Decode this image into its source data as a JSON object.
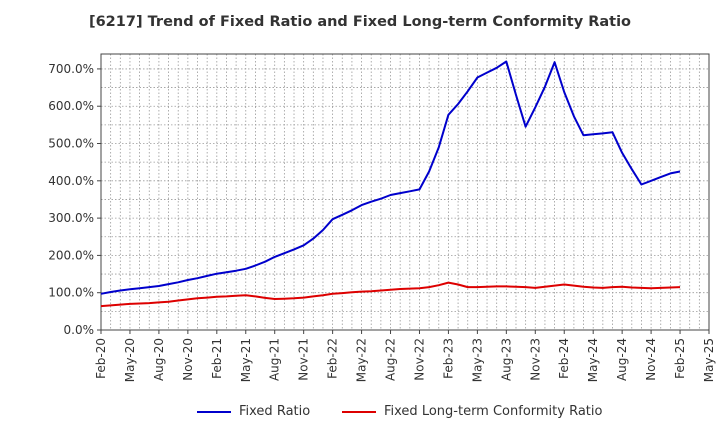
{
  "chart_data": {
    "type": "line",
    "title": "[6217]  Trend of Fixed Ratio and Fixed Long-term Conformity Ratio",
    "xlabel": "",
    "ylabel": "",
    "ylim": [
      0,
      740
    ],
    "yticks": [
      0,
      100,
      200,
      300,
      400,
      500,
      600,
      700
    ],
    "ytick_labels": [
      "0.0%",
      "100.0%",
      "200.0%",
      "300.0%",
      "400.0%",
      "500.0%",
      "600.0%",
      "700.0%"
    ],
    "xtick_labels": [
      "Feb-20",
      "May-20",
      "Aug-20",
      "Nov-20",
      "Feb-21",
      "May-21",
      "Aug-21",
      "Nov-21",
      "Feb-22",
      "May-22",
      "Aug-22",
      "Nov-22",
      "Feb-23",
      "May-23",
      "Aug-23",
      "Nov-23",
      "Feb-24",
      "May-24",
      "Aug-24",
      "Nov-24",
      "Feb-25",
      "May-25"
    ],
    "grid": true,
    "legend_position": "bottom",
    "x": [
      "Feb-20",
      "Mar-20",
      "Apr-20",
      "May-20",
      "Jun-20",
      "Jul-20",
      "Aug-20",
      "Sep-20",
      "Oct-20",
      "Nov-20",
      "Dec-20",
      "Jan-21",
      "Feb-21",
      "Mar-21",
      "Apr-21",
      "May-21",
      "Jun-21",
      "Jul-21",
      "Aug-21",
      "Sep-21",
      "Oct-21",
      "Nov-21",
      "Dec-21",
      "Jan-22",
      "Feb-22",
      "Mar-22",
      "Apr-22",
      "May-22",
      "Jun-22",
      "Jul-22",
      "Aug-22",
      "Sep-22",
      "Oct-22",
      "Nov-22",
      "Dec-22",
      "Jan-23",
      "Feb-23",
      "Mar-23",
      "Apr-23",
      "May-23",
      "Jun-23",
      "Jul-23",
      "Aug-23",
      "Sep-23",
      "Oct-23",
      "Nov-23",
      "Dec-23",
      "Jan-24",
      "Feb-24",
      "Mar-24",
      "Apr-24",
      "May-24",
      "Jun-24",
      "Jul-24",
      "Aug-24",
      "Sep-24",
      "Oct-24",
      "Nov-24",
      "Dec-24",
      "Jan-25",
      "Feb-25"
    ],
    "series": [
      {
        "name": "Fixed Ratio",
        "color": "#0000cc",
        "values": [
          97,
          102,
          106,
          109,
          112,
          115,
          118,
          123,
          128,
          134,
          139,
          145,
          151,
          155,
          159,
          164,
          173,
          183,
          196,
          206,
          216,
          227,
          245,
          268,
          297,
          309,
          321,
          335,
          344,
          352,
          362,
          367,
          372,
          377,
          425,
          490,
          577,
          606,
          640,
          677,
          690,
          703,
          720,
          630,
          545,
          597,
          652,
          718,
          638,
          573,
          522,
          525,
          527,
          530,
          475,
          431,
          390,
          400,
          410,
          420,
          425
        ]
      },
      {
        "name": "Fixed Long-term Conformity Ratio",
        "color": "#dd0000",
        "values": [
          64,
          66,
          68,
          70,
          71,
          72,
          74,
          76,
          79,
          82,
          85,
          87,
          89,
          90,
          92,
          93,
          90,
          86,
          83,
          84,
          85,
          87,
          90,
          93,
          97,
          99,
          101,
          103,
          104,
          106,
          108,
          110,
          111,
          112,
          115,
          120,
          127,
          122,
          115,
          115,
          116,
          117,
          117,
          116,
          115,
          113,
          116,
          119,
          122,
          119,
          116,
          114,
          113,
          115,
          116,
          114,
          113,
          112,
          113,
          114,
          115
        ]
      }
    ]
  }
}
